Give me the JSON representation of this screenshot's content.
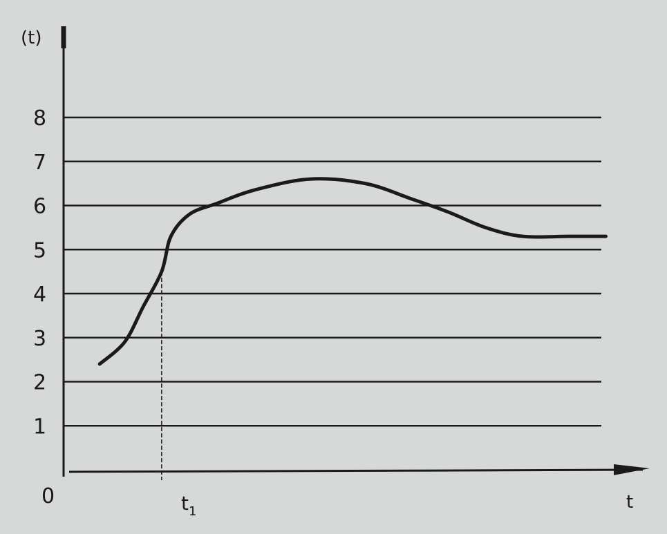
{
  "chart_data": {
    "type": "line",
    "ylabel": "(t)",
    "xlabel": "t",
    "origin_label": "0",
    "y_ticks": [
      "1",
      "2",
      "3",
      "4",
      "5",
      "6",
      "7",
      "8"
    ],
    "ylim": [
      0,
      8
    ],
    "gridlines": [
      1,
      2,
      3,
      4,
      5,
      6,
      7,
      8
    ],
    "grid": true,
    "marker": {
      "label": "t",
      "sub": "1",
      "x": 1.0,
      "y": 4.5
    },
    "series": [
      {
        "points": [
          [
            0.33,
            2.4
          ],
          [
            0.6,
            2.9
          ],
          [
            0.8,
            3.7
          ],
          [
            1.0,
            4.5
          ],
          [
            1.1,
            5.3
          ],
          [
            1.3,
            5.8
          ],
          [
            1.6,
            6.05
          ],
          [
            2.0,
            6.35
          ],
          [
            2.6,
            6.6
          ],
          [
            3.2,
            6.5
          ],
          [
            3.7,
            6.15
          ],
          [
            4.1,
            5.85
          ],
          [
            4.5,
            5.5
          ],
          [
            4.9,
            5.3
          ],
          [
            5.4,
            5.3
          ],
          [
            5.8,
            5.3
          ]
        ]
      }
    ],
    "xlim": [
      0,
      6.2
    ],
    "colors": {
      "ink": "#1a1a1a",
      "paper": "#d6d9d7"
    }
  }
}
